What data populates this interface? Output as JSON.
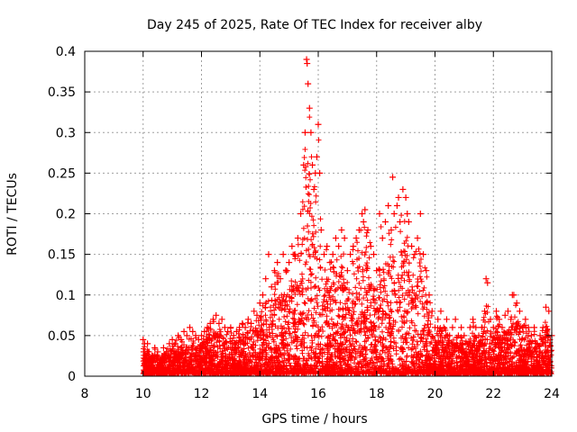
{
  "chart_data": {
    "type": "scatter",
    "title": "Day 245 of 2025, Rate Of TEC Index for receiver alby",
    "xlabel": "GPS time / hours",
    "ylabel": "ROTI / TECUs",
    "xlim": [
      8,
      24
    ],
    "ylim": [
      0,
      0.4
    ],
    "x_ticks": [
      8,
      10,
      12,
      14,
      16,
      18,
      20,
      22,
      24
    ],
    "x_tick_labels": [
      "8",
      "10",
      "12",
      "14",
      "16",
      "18",
      "20",
      "22",
      "24"
    ],
    "y_ticks": [
      0,
      0.05,
      0.1,
      0.15,
      0.2,
      0.25,
      0.3,
      0.35,
      0.4
    ],
    "y_tick_labels": [
      "0",
      "0.05",
      "0.1",
      "0.15",
      "0.2",
      "0.25",
      "0.3",
      "0.35",
      "0.4"
    ],
    "grid": true,
    "marker": "+",
    "marker_color": "#ff0000",
    "series": [
      {
        "name": "ROTI",
        "x": [
          10.0,
          10.02,
          10.05,
          10.1,
          10.15,
          10.2,
          10.3,
          10.4,
          10.5,
          10.6,
          10.7,
          10.8,
          10.9,
          11.0,
          11.1,
          11.2,
          11.3,
          11.4,
          11.5,
          11.6,
          11.7,
          11.8,
          11.9,
          12.0,
          12.1,
          12.2,
          12.3,
          12.4,
          12.5,
          12.6,
          12.7,
          12.8,
          12.9,
          13.0,
          13.1,
          13.2,
          13.3,
          13.4,
          13.5,
          13.6,
          13.7,
          13.8,
          13.9,
          14.0,
          14.1,
          14.2,
          14.3,
          14.4,
          14.5,
          14.6,
          14.7,
          14.8,
          14.9,
          15.0,
          15.1,
          15.2,
          15.3,
          15.4,
          15.5,
          15.55,
          15.6,
          15.62,
          15.65,
          15.7,
          15.75,
          15.8,
          15.85,
          15.9,
          15.95,
          16.0,
          16.05,
          16.1,
          16.2,
          16.3,
          16.4,
          16.5,
          16.6,
          16.7,
          16.8,
          16.9,
          17.0,
          17.1,
          17.2,
          17.3,
          17.4,
          17.5,
          17.55,
          17.6,
          17.7,
          17.8,
          17.9,
          18.0,
          18.1,
          18.2,
          18.3,
          18.4,
          18.5,
          18.55,
          18.6,
          18.7,
          18.75,
          18.8,
          18.9,
          19.0,
          19.05,
          19.1,
          19.2,
          19.3,
          19.4,
          19.5,
          19.6,
          19.7,
          19.8,
          19.9,
          20.0,
          20.1,
          20.2,
          20.3,
          20.4,
          20.5,
          20.6,
          20.7,
          20.8,
          20.9,
          21.0,
          21.1,
          21.2,
          21.3,
          21.4,
          21.5,
          21.6,
          21.7,
          21.75,
          21.8,
          21.9,
          22.0,
          22.1,
          22.2,
          22.3,
          22.4,
          22.5,
          22.6,
          22.65,
          22.7,
          22.8,
          22.9,
          23.0,
          23.1,
          23.2,
          23.3,
          23.4,
          23.5,
          23.6,
          23.7,
          23.8,
          23.9,
          24.0
        ],
        "y": [
          0.045,
          0.03,
          0.04,
          0.025,
          0.04,
          0.03,
          0.025,
          0.035,
          0.03,
          0.02,
          0.035,
          0.03,
          0.04,
          0.045,
          0.04,
          0.05,
          0.045,
          0.055,
          0.05,
          0.06,
          0.055,
          0.05,
          0.045,
          0.05,
          0.055,
          0.06,
          0.065,
          0.07,
          0.075,
          0.065,
          0.07,
          0.06,
          0.055,
          0.06,
          0.05,
          0.055,
          0.06,
          0.065,
          0.06,
          0.07,
          0.065,
          0.08,
          0.075,
          0.09,
          0.1,
          0.12,
          0.15,
          0.11,
          0.13,
          0.14,
          0.12,
          0.15,
          0.13,
          0.14,
          0.16,
          0.15,
          0.17,
          0.2,
          0.26,
          0.3,
          0.39,
          0.385,
          0.36,
          0.33,
          0.3,
          0.26,
          0.23,
          0.25,
          0.27,
          0.31,
          0.25,
          0.18,
          0.15,
          0.16,
          0.14,
          0.15,
          0.17,
          0.16,
          0.18,
          0.17,
          0.13,
          0.15,
          0.16,
          0.17,
          0.18,
          0.2,
          0.19,
          0.205,
          0.18,
          0.16,
          0.15,
          0.13,
          0.2,
          0.17,
          0.19,
          0.21,
          0.18,
          0.245,
          0.2,
          0.21,
          0.22,
          0.19,
          0.23,
          0.22,
          0.2,
          0.19,
          0.16,
          0.15,
          0.17,
          0.2,
          0.15,
          0.13,
          0.1,
          0.08,
          0.06,
          0.07,
          0.08,
          0.06,
          0.07,
          0.05,
          0.06,
          0.07,
          0.05,
          0.06,
          0.05,
          0.04,
          0.06,
          0.07,
          0.06,
          0.05,
          0.06,
          0.08,
          0.12,
          0.115,
          0.07,
          0.06,
          0.08,
          0.07,
          0.06,
          0.075,
          0.08,
          0.07,
          0.1,
          0.1,
          0.09,
          0.08,
          0.06,
          0.07,
          0.06,
          0.05,
          0.06,
          0.04,
          0.05,
          0.06,
          0.085,
          0.08,
          0.05
        ]
      }
    ]
  }
}
